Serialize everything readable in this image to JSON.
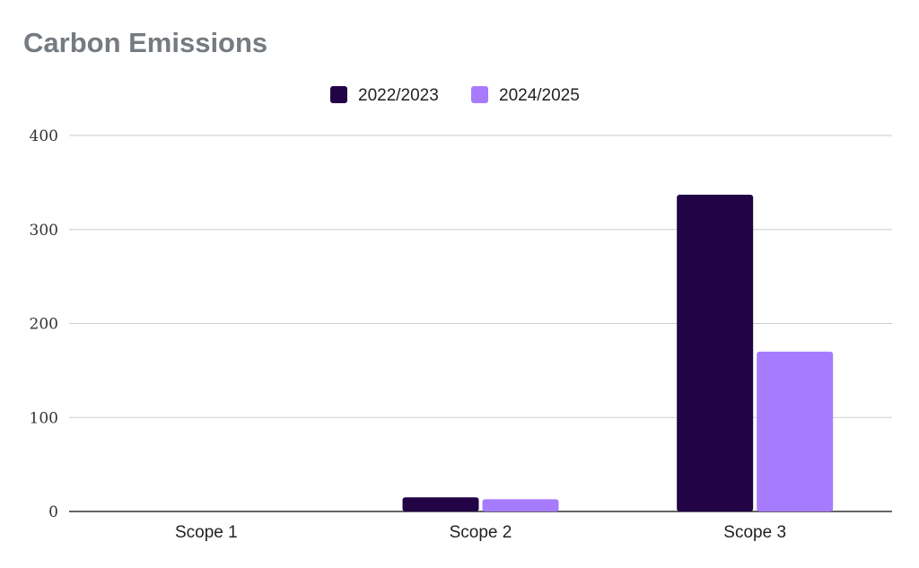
{
  "chart_data": {
    "type": "bar",
    "title": "Carbon Emissions",
    "categories": [
      "Scope 1",
      "Scope 2",
      "Scope 3"
    ],
    "series": [
      {
        "name": "2022/2023",
        "color": "#220446",
        "values": [
          0,
          15,
          337
        ]
      },
      {
        "name": "2024/2025",
        "color": "#a77bfd",
        "values": [
          0,
          13,
          170
        ]
      }
    ],
    "ylim": [
      0,
      400
    ],
    "yticks": [
      0,
      100,
      200,
      300,
      400
    ],
    "grid": true,
    "legend_position": "top-center",
    "xlabel": "",
    "ylabel": ""
  }
}
